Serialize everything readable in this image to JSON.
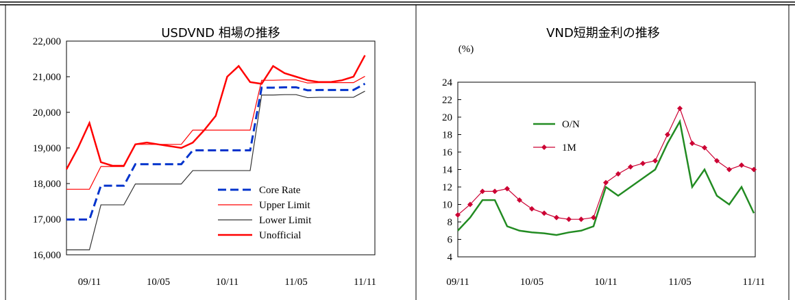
{
  "chart_data": [
    {
      "type": "line",
      "title": "USDVND 相場の推移",
      "categories": [
        null,
        null,
        "09/11",
        null,
        null,
        null,
        null,
        null,
        "10/05",
        null,
        null,
        null,
        null,
        null,
        "10/11",
        null,
        null,
        null,
        null,
        null,
        "11/05",
        null,
        null,
        null,
        null,
        null,
        "11/11"
      ],
      "ylim": [
        16000,
        22000
      ],
      "yticks": [
        {
          "value": 16000,
          "label": "16,000"
        },
        {
          "value": 17000,
          "label": "17,000"
        },
        {
          "value": 18000,
          "label": "18,000"
        },
        {
          "value": 19000,
          "label": "19,000"
        },
        {
          "value": 20000,
          "label": "20,000"
        },
        {
          "value": 21000,
          "label": "21,000"
        },
        {
          "value": 22000,
          "label": "22,000"
        }
      ],
      "series": [
        {
          "name": "Core Rate",
          "color": "#0033cc",
          "style": "dashed",
          "values": [
            16990,
            16990,
            16990,
            17941,
            17941,
            17941,
            18544,
            18544,
            18544,
            18544,
            18544,
            18932,
            18932,
            18932,
            18932,
            18932,
            18932,
            20693,
            20693,
            20703,
            20703,
            20618,
            20628,
            20628,
            20628,
            20628,
            20803
          ]
        },
        {
          "name": "Upper Limit",
          "color": "#ff0000",
          "style": "thin",
          "values": [
            17840,
            17840,
            17840,
            18479,
            18479,
            18479,
            19100,
            19100,
            19100,
            19100,
            19100,
            19500,
            19500,
            19500,
            19500,
            19500,
            19500,
            20900,
            20900,
            20910,
            20910,
            20824,
            20834,
            20834,
            20834,
            20834,
            21011
          ]
        },
        {
          "name": "Lower Limit",
          "color": "#333333",
          "style": "thin",
          "values": [
            16140,
            16140,
            16140,
            17403,
            17403,
            17403,
            17988,
            17988,
            17988,
            17988,
            17988,
            18364,
            18364,
            18364,
            18364,
            18364,
            18364,
            20486,
            20486,
            20496,
            20496,
            20412,
            20422,
            20422,
            20422,
            20422,
            20595
          ]
        },
        {
          "name": "Unofficial",
          "color": "#ff0000",
          "style": "thick",
          "values": [
            18400,
            19000,
            19700,
            18600,
            18500,
            18500,
            19100,
            19150,
            19100,
            19050,
            19000,
            19150,
            19500,
            19900,
            21000,
            21300,
            20850,
            20800,
            21300,
            21100,
            21000,
            20900,
            20850,
            20850,
            20900,
            21000,
            21600
          ]
        }
      ]
    },
    {
      "type": "line",
      "title": "VND短期金利の推移",
      "ylabel": "(%)",
      "categories": [
        "09/11",
        null,
        null,
        null,
        null,
        null,
        "10/05",
        null,
        null,
        null,
        null,
        null,
        "10/11",
        null,
        null,
        null,
        null,
        null,
        "11/05",
        null,
        null,
        null,
        null,
        null,
        "11/11"
      ],
      "ylim": [
        4,
        24
      ],
      "yticks": [
        4,
        6,
        8,
        10,
        12,
        14,
        16,
        18,
        20,
        22,
        24
      ],
      "series": [
        {
          "name": "O/N",
          "color": "#228b22",
          "style": "thick",
          "values": [
            7,
            8.5,
            10.5,
            10.5,
            7.5,
            7,
            6.8,
            6.7,
            6.5,
            6.8,
            7,
            7.5,
            12,
            11,
            12,
            13,
            14,
            17,
            19.5,
            12,
            14,
            11,
            10,
            12,
            9
          ]
        },
        {
          "name": "1M",
          "color": "#cc0033",
          "style": "thin",
          "marker": "diamond",
          "values": [
            8.8,
            10,
            11.5,
            11.5,
            11.8,
            10.5,
            9.5,
            9,
            8.5,
            8.3,
            8.3,
            8.5,
            12.5,
            13.5,
            14.3,
            14.7,
            15,
            18,
            21,
            17,
            16.5,
            15,
            14,
            14.5,
            14
          ]
        }
      ]
    }
  ]
}
